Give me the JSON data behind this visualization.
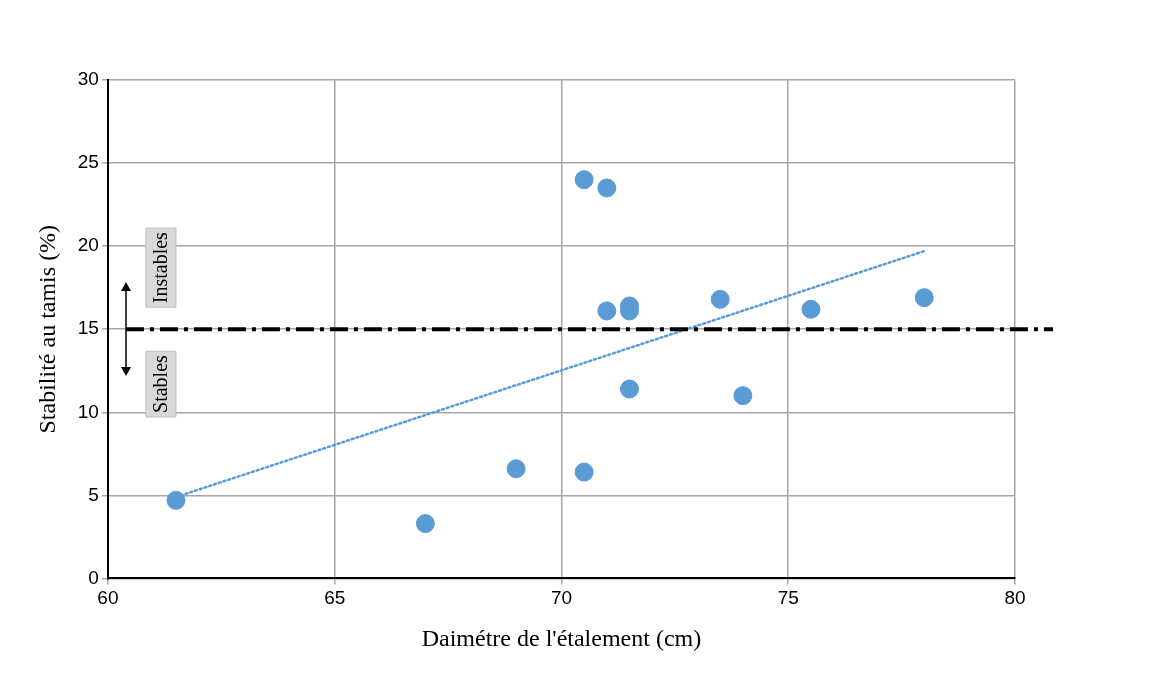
{
  "chart_data": {
    "type": "scatter",
    "xlabel": "Daimétre de l'étalement (cm)",
    "ylabel": "Stabilité au tamis (%)",
    "xlim": [
      60,
      80
    ],
    "xticks": [
      60,
      65,
      70,
      75,
      80
    ],
    "ylim": [
      0,
      30
    ],
    "yticks": [
      0,
      5,
      10,
      15,
      20,
      25,
      30
    ],
    "grid": true,
    "legend": false,
    "marker": "circle",
    "series": [
      {
        "color": "#5b9bd5",
        "x": [
          61.5,
          67,
          69,
          70.5,
          70.5,
          71,
          71,
          71.5,
          71.5,
          71.5,
          73.5,
          74,
          75.5,
          78
        ],
        "values": [
          4.7,
          3.3,
          6.6,
          24,
          6.4,
          23.5,
          16.1,
          16.4,
          16.1,
          11.4,
          16.8,
          11,
          16.2,
          16.9
        ]
      },
      {
        "type": "line",
        "color": "#5b9bd5",
        "line_style": "dotted",
        "marker": "none",
        "x": [
          61.5,
          78
        ],
        "values": [
          4.9,
          19.7
        ]
      }
    ],
    "ref_lines": [
      {
        "axis": "y",
        "value": 15,
        "color": "#000000",
        "line_style": "dashdot"
      }
    ],
    "annotations": [
      "Instables",
      "Stables"
    ]
  }
}
